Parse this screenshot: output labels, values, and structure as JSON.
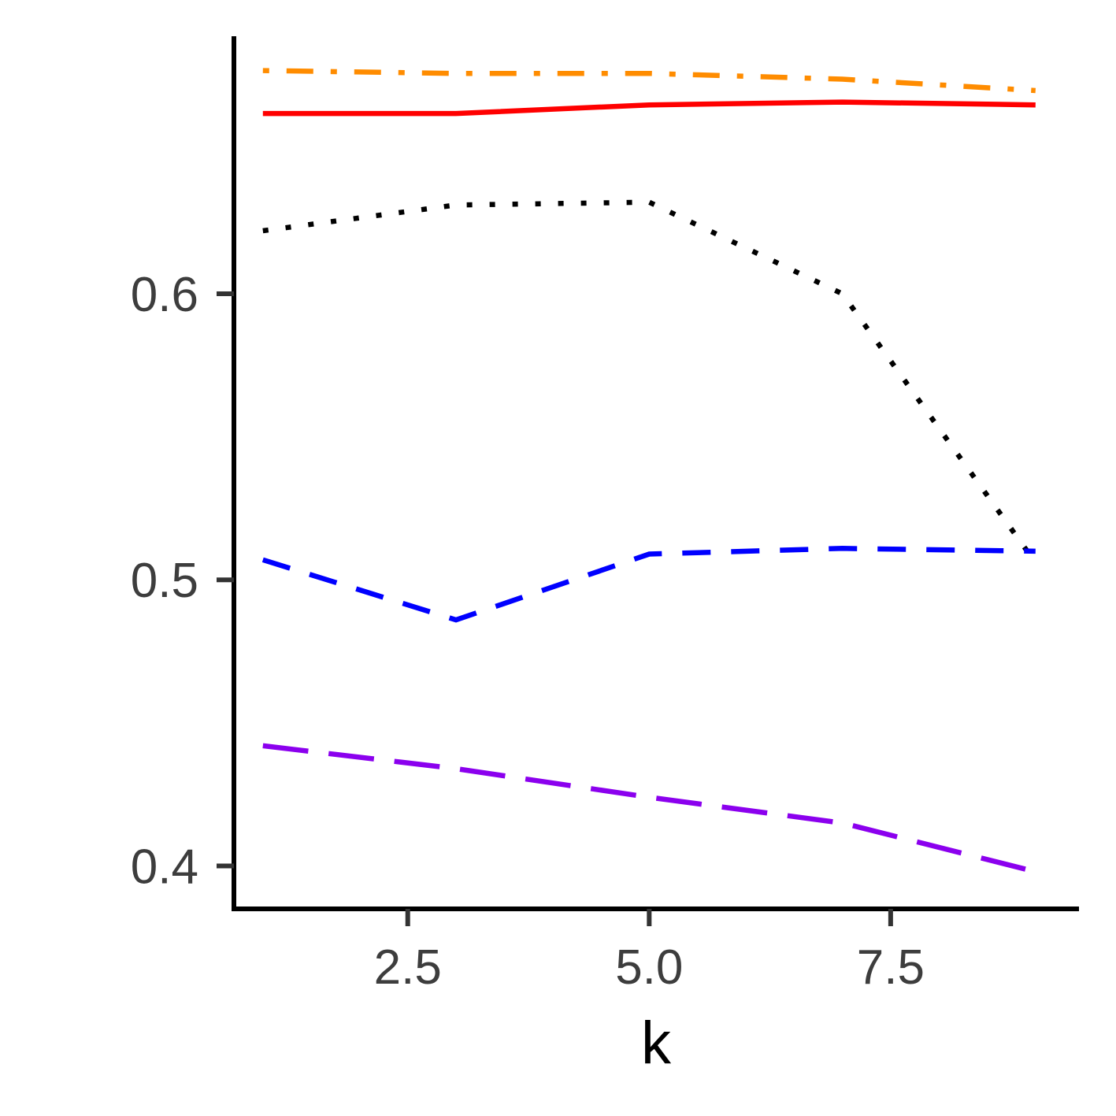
{
  "chart_data": {
    "type": "line",
    "title": "",
    "xlabel": "k",
    "ylabel": "",
    "xlim": [
      0.7,
      9.45
    ],
    "ylim": [
      0.385,
      0.69
    ],
    "x_ticks": [
      2.5,
      5.0,
      7.5
    ],
    "x_tick_labels": [
      "2.5",
      "5.0",
      "7.5"
    ],
    "y_ticks": [
      0.4,
      0.5,
      0.6
    ],
    "y_tick_labels": [
      "0.4",
      "0.5",
      "0.6"
    ],
    "grid": false,
    "legend": "none",
    "x": [
      1,
      3,
      5,
      7,
      9
    ],
    "series": [
      {
        "values": [
          0.678,
          0.677,
          0.677,
          0.675,
          0.671
        ],
        "color": "#FF8C00",
        "dash": "dotdash"
      },
      {
        "values": [
          0.663,
          0.663,
          0.666,
          0.667,
          0.666
        ],
        "color": "#FF0000",
        "dash": "solid"
      },
      {
        "values": [
          0.622,
          0.631,
          0.632,
          0.6,
          0.506
        ],
        "color": "#000000",
        "dash": "dotted"
      },
      {
        "values": [
          0.507,
          0.486,
          0.509,
          0.511,
          0.51
        ],
        "color": "#0000FF",
        "dash": "dashed"
      },
      {
        "values": [
          0.442,
          0.434,
          0.424,
          0.415,
          0.398
        ],
        "color": "#8B00EE",
        "dash": "longdash"
      }
    ]
  }
}
